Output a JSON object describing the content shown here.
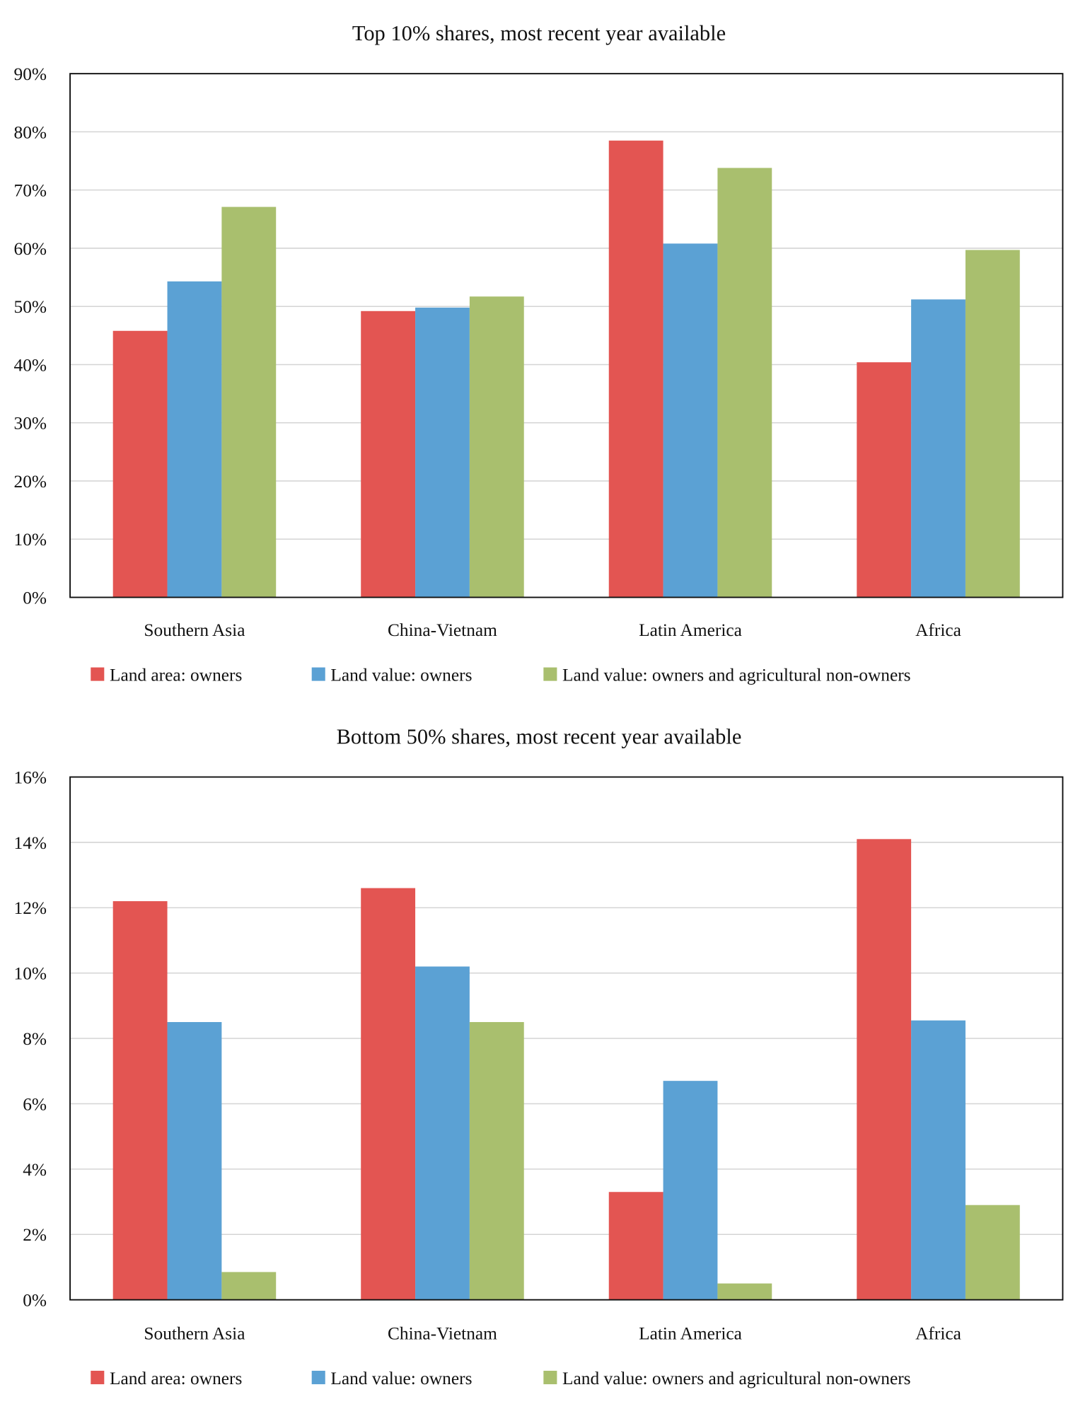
{
  "colors": {
    "Land area: owners": "#e35552",
    "Land value: owners": "#5ba1d4",
    "Land value: owners and agricultural non-owners": "#a9bf6e"
  },
  "chart_data": [
    {
      "type": "bar",
      "title": "Top 10% shares, most recent year available",
      "xlabel": "",
      "ylabel": "",
      "categories": [
        "Southern Asia",
        "China-Vietnam",
        "Latin America",
        "Africa"
      ],
      "ylim": [
        0,
        90
      ],
      "yticks": [
        0,
        10,
        20,
        30,
        40,
        50,
        60,
        70,
        80,
        90
      ],
      "ytick_labels": [
        "0%",
        "10%",
        "20%",
        "30%",
        "40%",
        "50%",
        "60%",
        "70%",
        "80%",
        "90%"
      ],
      "grid": true,
      "legend": "bottom",
      "series": [
        {
          "name": "Land area: owners",
          "values": [
            45.8,
            49.2,
            78.5,
            40.4
          ]
        },
        {
          "name": "Land value: owners",
          "values": [
            54.3,
            49.8,
            60.8,
            51.2
          ]
        },
        {
          "name": "Land value: owners and agricultural non-owners",
          "values": [
            67.1,
            51.7,
            73.8,
            59.7
          ]
        }
      ]
    },
    {
      "type": "bar",
      "title": "Bottom 50% shares, most recent year available",
      "xlabel": "",
      "ylabel": "",
      "categories": [
        "Southern Asia",
        "China-Vietnam",
        "Latin America",
        "Africa"
      ],
      "ylim": [
        0,
        16
      ],
      "yticks": [
        0,
        2,
        4,
        6,
        8,
        10,
        12,
        14,
        16
      ],
      "ytick_labels": [
        "0%",
        "2%",
        "4%",
        "6%",
        "8%",
        "10%",
        "12%",
        "14%",
        "16%"
      ],
      "grid": true,
      "legend": "bottom",
      "series": [
        {
          "name": "Land area: owners",
          "values": [
            12.2,
            12.6,
            3.3,
            14.1
          ]
        },
        {
          "name": "Land value: owners",
          "values": [
            8.5,
            10.2,
            6.7,
            8.55
          ]
        },
        {
          "name": "Land value: owners and agricultural non-owners",
          "values": [
            0.85,
            8.5,
            0.5,
            2.9
          ]
        }
      ]
    }
  ]
}
